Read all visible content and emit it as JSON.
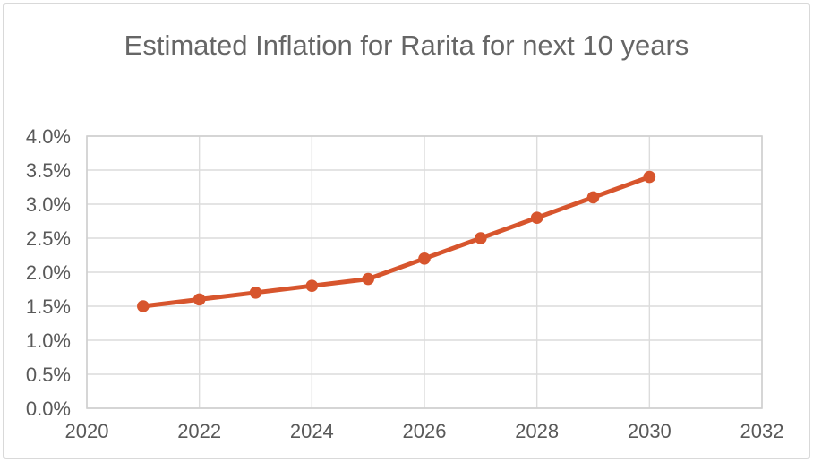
{
  "window": {
    "background_color": "#ffffff",
    "card_border_color": "#d9d9d9"
  },
  "chart_data": {
    "type": "line",
    "title": "Estimated Inflation for Rarita for next 10 years",
    "x": [
      2021,
      2022,
      2023,
      2024,
      2025,
      2026,
      2027,
      2028,
      2029,
      2030
    ],
    "values": [
      1.5,
      1.6,
      1.7,
      1.8,
      1.9,
      2.2,
      2.5,
      2.8,
      3.1,
      3.4
    ],
    "unit": "%",
    "xlabel": "",
    "ylabel": "",
    "xlim": [
      2020,
      2032
    ],
    "ylim": [
      0,
      4
    ],
    "x_ticks": [
      "2020",
      "2022",
      "2024",
      "2026",
      "2028",
      "2030",
      "2032"
    ],
    "y_ticks": [
      "4.0%",
      "3.5%",
      "3.0%",
      "2.5%",
      "2.0%",
      "1.5%",
      "1.0%",
      "0.5%",
      "0.0%"
    ],
    "grid": true,
    "legend_position": "none",
    "line_color": "#d7552d",
    "marker": "circle",
    "title_color": "#666666",
    "tick_label_color": "#595959",
    "gridline_color": "#dcdcdc",
    "plot_border_color": "#cfcfcf",
    "plot_background": "#ffffff"
  }
}
